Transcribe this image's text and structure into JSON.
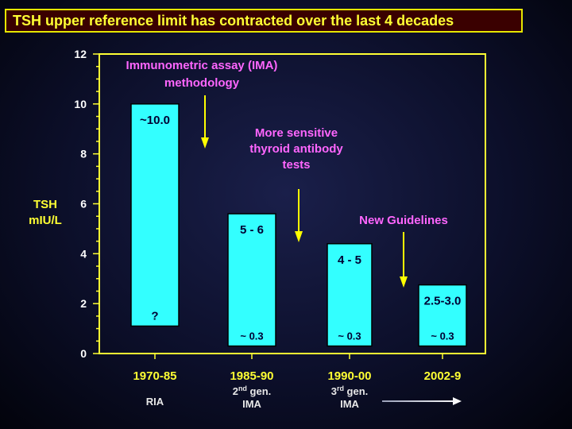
{
  "title": "TSH upper reference limit has contracted over the last 4 decades",
  "chart_data": {
    "type": "bar",
    "ylabel": [
      "TSH",
      "mIU/L"
    ],
    "ylim": [
      0,
      12
    ],
    "y_ticks": [
      0,
      2,
      4,
      6,
      8,
      10,
      12
    ],
    "grid": false,
    "categories": [
      "1970-85",
      "1985-90",
      "1990-00",
      "2002-9"
    ],
    "methods": [
      [
        "RIA"
      ],
      [
        "2nd gen.",
        "IMA"
      ],
      [
        "3rd gen.",
        "IMA"
      ],
      []
    ],
    "bars": [
      {
        "low": 1.1,
        "high": 10.0,
        "top_label": "~10.0",
        "bottom_label": "?"
      },
      {
        "low": 0.3,
        "high": 5.6,
        "top_label": "5 - 6",
        "bottom_label": "~ 0.3"
      },
      {
        "low": 0.3,
        "high": 4.4,
        "top_label": "4 - 5",
        "bottom_label": "~ 0.3"
      },
      {
        "low": 0.3,
        "high": 2.75,
        "top_label": "2.5-3.0",
        "bottom_label": "~ 0.3"
      }
    ],
    "annotations": [
      {
        "lines": [
          "Immunometric assay (IMA)",
          "methodology"
        ]
      },
      {
        "lines": [
          "More sensitive",
          "thyroid antibody",
          "tests"
        ]
      },
      {
        "lines": [
          "New Guidelines"
        ]
      }
    ],
    "colors": {
      "bar": "#33ffff",
      "axis": "#ffff33",
      "annotation": "#ff66ff",
      "arrow": "#ffff00",
      "title_bg": "#3a0000"
    }
  }
}
